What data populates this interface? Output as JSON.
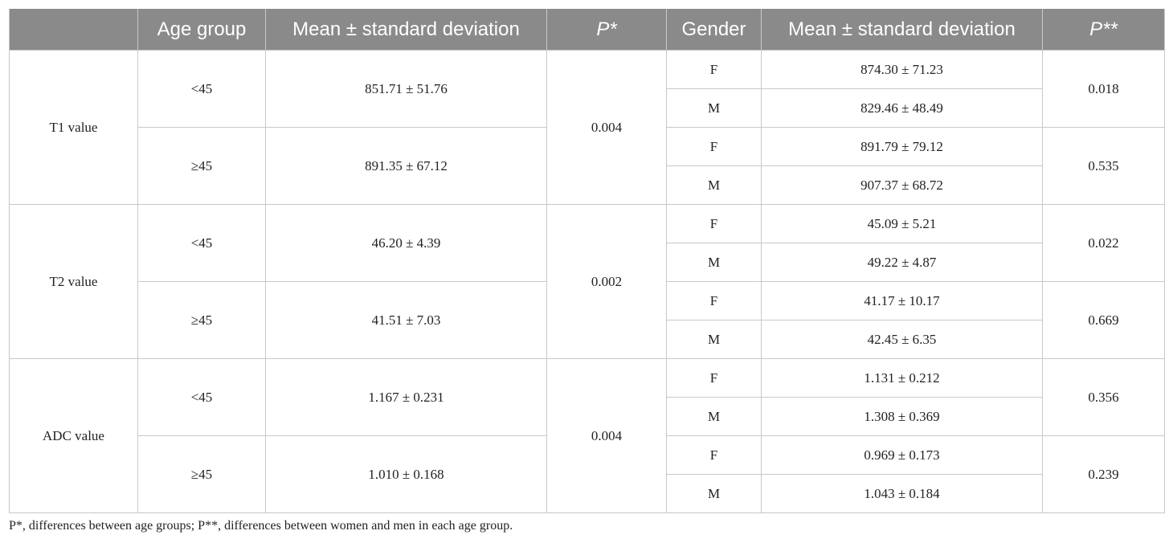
{
  "header": {
    "blank": "",
    "age_group": "Age group",
    "mean_sd_1": "Mean ± standard deviation",
    "p1": "P*",
    "gender": "Gender",
    "mean_sd_2": "Mean ± standard deviation",
    "p2": "P**"
  },
  "rows": [
    {
      "label": "T1 value",
      "p_age": "0.004",
      "groups": [
        {
          "age": "<45",
          "mean": "851.71 ± 51.76",
          "p_gender": "0.018",
          "genders": [
            {
              "g": "F",
              "v": "874.30 ± 71.23"
            },
            {
              "g": "M",
              "v": "829.46 ± 48.49"
            }
          ]
        },
        {
          "age": "≥45",
          "mean": "891.35 ± 67.12",
          "p_gender": "0.535",
          "genders": [
            {
              "g": "F",
              "v": "891.79 ± 79.12"
            },
            {
              "g": "M",
              "v": "907.37 ± 68.72"
            }
          ]
        }
      ]
    },
    {
      "label": "T2 value",
      "p_age": "0.002",
      "groups": [
        {
          "age": "<45",
          "mean": "46.20 ± 4.39",
          "p_gender": "0.022",
          "genders": [
            {
              "g": "F",
              "v": "45.09 ± 5.21"
            },
            {
              "g": "M",
              "v": "49.22 ± 4.87"
            }
          ]
        },
        {
          "age": "≥45",
          "mean": "41.51 ± 7.03",
          "p_gender": "0.669",
          "genders": [
            {
              "g": "F",
              "v": "41.17 ± 10.17"
            },
            {
              "g": "M",
              "v": "42.45 ± 6.35"
            }
          ]
        }
      ]
    },
    {
      "label": "ADC value",
      "p_age": "0.004",
      "groups": [
        {
          "age": "<45",
          "mean": "1.167 ± 0.231",
          "p_gender": "0.356",
          "genders": [
            {
              "g": "F",
              "v": "1.131 ± 0.212"
            },
            {
              "g": "M",
              "v": "1.308 ± 0.369"
            }
          ]
        },
        {
          "age": "≥45",
          "mean": "1.010 ± 0.168",
          "p_gender": "0.239",
          "genders": [
            {
              "g": "F",
              "v": "0.969 ± 0.173"
            },
            {
              "g": "M",
              "v": "1.043 ± 0.184"
            }
          ]
        }
      ]
    }
  ],
  "footnote": "P*, differences between age groups; P**, differences between women and men in each age group."
}
